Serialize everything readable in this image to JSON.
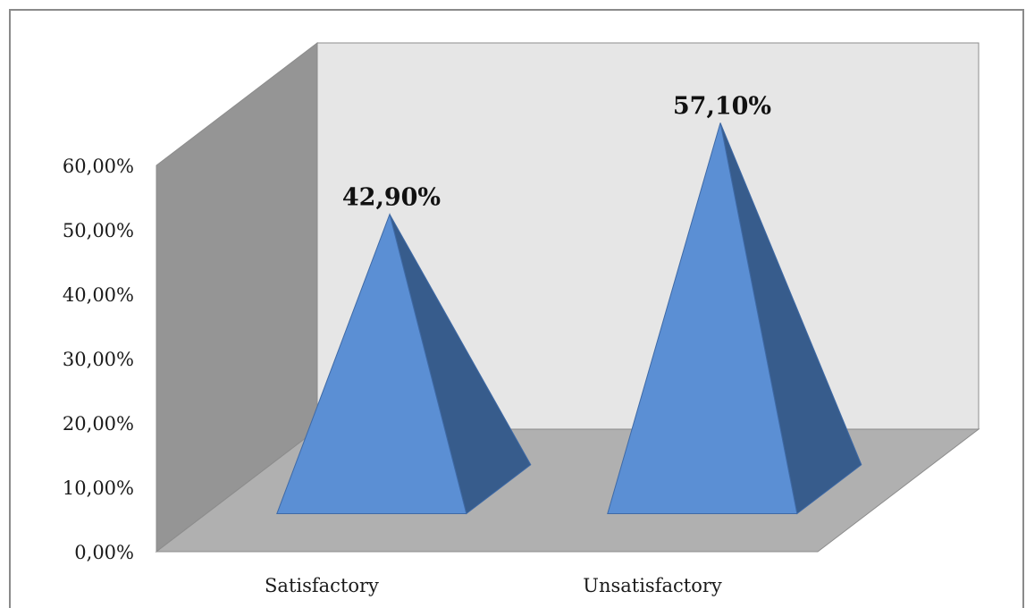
{
  "chart_data": {
    "type": "bar",
    "style": "3d-pyramid",
    "categories": [
      "Satisfactory",
      "Unsatisfactory"
    ],
    "values": [
      42.9,
      57.1
    ],
    "data_labels": [
      "42,90%",
      "57,10%"
    ],
    "title": "",
    "xlabel": "",
    "ylabel": "",
    "ylim": [
      0,
      60
    ],
    "yticks": [
      0,
      10,
      20,
      30,
      40,
      50,
      60
    ],
    "ytick_labels": [
      "0,00%",
      "10,00%",
      "20,00%",
      "30,00%",
      "40,00%",
      "50,00%",
      "60,00%"
    ],
    "grid": false,
    "legend": "none",
    "colors": {
      "pyramid_front": "#5b8fd4",
      "pyramid_side": "#375c8c",
      "pyramid_edge": "#3f6aa6",
      "back_wall": "#e6e6e6",
      "side_wall": "#959595",
      "floor": "#b0b0b0",
      "wall_edge": "#8c8c8c"
    }
  }
}
